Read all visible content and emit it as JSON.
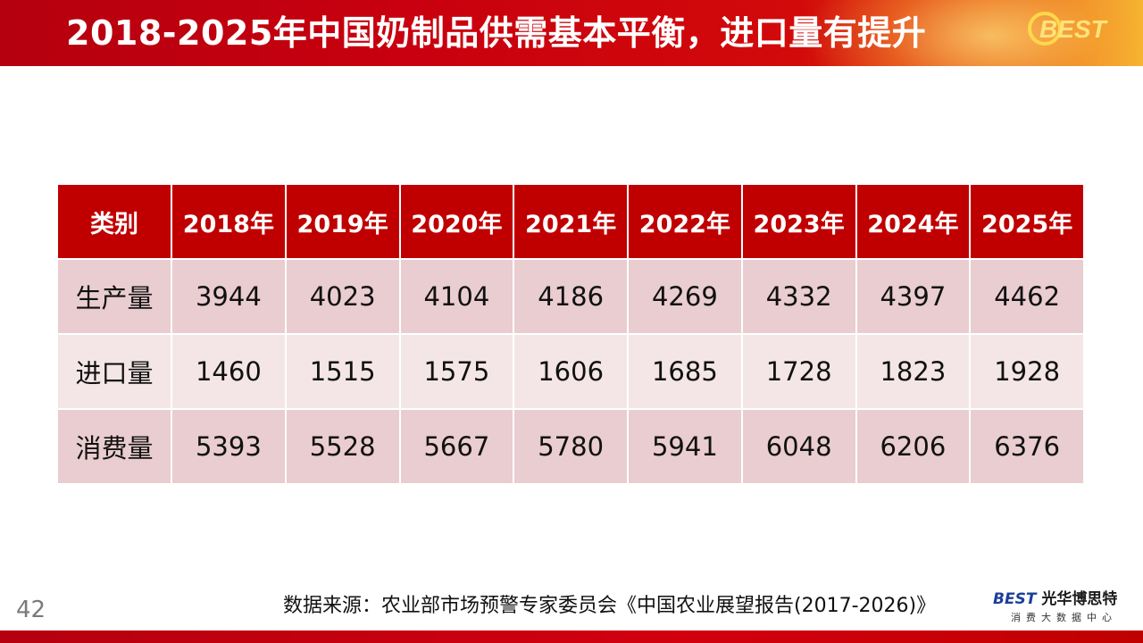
{
  "header": {
    "title": "2018-2025年中国奶制品供需基本平衡，进口量有提升",
    "logo_text": "BEST"
  },
  "table": {
    "headers": [
      "类别",
      "2018年",
      "2019年",
      "2020年",
      "2021年",
      "2022年",
      "2023年",
      "2024年",
      "2025年"
    ],
    "rows": [
      {
        "label": "生产量",
        "values": [
          "3944",
          "4023",
          "4104",
          "4186",
          "4269",
          "4332",
          "4397",
          "4462"
        ]
      },
      {
        "label": "进口量",
        "values": [
          "1460",
          "1515",
          "1575",
          "1606",
          "1685",
          "1728",
          "1823",
          "1928"
        ]
      },
      {
        "label": "消费量",
        "values": [
          "5393",
          "5528",
          "5667",
          "5780",
          "5941",
          "6048",
          "6206",
          "6376"
        ]
      }
    ]
  },
  "footer": {
    "page_number": "42",
    "source": "数据来源：农业部市场预警专家委员会《中国农业展望报告(2017-2026)》",
    "brand_mark": "BEST",
    "brand_name": "光华博思特",
    "brand_sub": "消费大数据中心"
  },
  "colors": {
    "header_red": "#c00000",
    "row_dark": "#e9cdd0",
    "row_light": "#f4e6e7"
  }
}
